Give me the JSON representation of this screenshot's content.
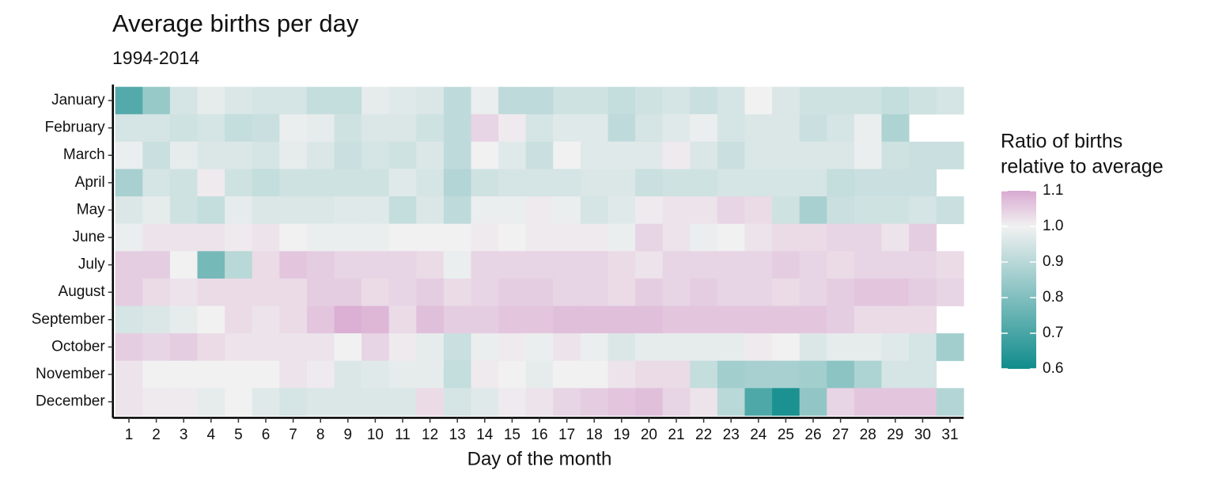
{
  "chart_data": {
    "type": "heatmap",
    "title": "Average births per day",
    "subtitle": "1994-2014",
    "x_label": "Day of the month",
    "categories": [
      "1",
      "2",
      "3",
      "4",
      "5",
      "6",
      "7",
      "8",
      "9",
      "10",
      "11",
      "12",
      "13",
      "14",
      "15",
      "16",
      "17",
      "18",
      "19",
      "20",
      "21",
      "22",
      "23",
      "24",
      "25",
      "26",
      "27",
      "28",
      "29",
      "30",
      "31"
    ],
    "rows": [
      "January",
      "February",
      "March",
      "April",
      "May",
      "June",
      "July",
      "August",
      "September",
      "October",
      "November",
      "December"
    ],
    "values": [
      [
        0.72,
        0.84,
        0.95,
        0.98,
        0.96,
        0.95,
        0.95,
        0.92,
        0.92,
        0.98,
        0.97,
        0.96,
        0.91,
        0.99,
        0.91,
        0.91,
        0.94,
        0.94,
        0.92,
        0.94,
        0.95,
        0.93,
        0.95,
        1.0,
        0.96,
        0.94,
        0.94,
        0.94,
        0.92,
        0.94,
        0.95
      ],
      [
        0.95,
        0.95,
        0.94,
        0.95,
        0.92,
        0.93,
        0.99,
        0.98,
        0.94,
        0.96,
        0.96,
        0.94,
        0.91,
        1.04,
        1.01,
        0.95,
        0.97,
        0.97,
        0.91,
        0.95,
        0.97,
        0.99,
        0.95,
        0.96,
        0.96,
        0.93,
        0.95,
        0.99,
        0.88,
        null,
        null
      ],
      [
        0.99,
        0.93,
        0.98,
        0.96,
        0.96,
        0.95,
        0.98,
        0.96,
        0.93,
        0.95,
        0.94,
        0.96,
        0.91,
        1.0,
        0.97,
        0.93,
        1.0,
        0.97,
        0.97,
        0.97,
        1.01,
        0.96,
        0.93,
        0.96,
        0.96,
        0.96,
        0.96,
        0.99,
        0.94,
        0.93,
        0.93
      ],
      [
        0.87,
        0.95,
        0.94,
        1.01,
        0.94,
        0.92,
        0.94,
        0.94,
        0.94,
        0.94,
        0.97,
        0.95,
        0.89,
        0.94,
        0.95,
        0.95,
        0.95,
        0.96,
        0.96,
        0.93,
        0.94,
        0.94,
        0.95,
        0.95,
        0.95,
        0.95,
        0.92,
        0.93,
        0.93,
        0.93,
        null
      ],
      [
        0.96,
        0.98,
        0.94,
        0.92,
        0.98,
        0.96,
        0.96,
        0.96,
        0.97,
        0.97,
        0.92,
        0.96,
        0.91,
        0.99,
        0.99,
        1.01,
        0.99,
        0.95,
        0.97,
        1.01,
        1.02,
        1.02,
        1.04,
        1.03,
        0.94,
        0.87,
        0.93,
        0.94,
        0.94,
        0.95,
        0.93
      ],
      [
        0.99,
        1.02,
        1.02,
        1.02,
        1.01,
        1.02,
        1.0,
        0.99,
        0.99,
        0.99,
        1.0,
        1.0,
        1.0,
        1.01,
        1.0,
        1.01,
        1.01,
        1.01,
        0.99,
        1.04,
        1.02,
        0.99,
        1.0,
        1.02,
        1.03,
        1.03,
        1.04,
        1.04,
        1.02,
        1.05,
        null
      ],
      [
        1.05,
        1.05,
        1.0,
        0.78,
        0.9,
        1.03,
        1.06,
        1.05,
        1.04,
        1.04,
        1.04,
        1.03,
        0.99,
        1.04,
        1.04,
        1.04,
        1.04,
        1.04,
        1.03,
        1.02,
        1.04,
        1.04,
        1.04,
        1.04,
        1.05,
        1.04,
        1.03,
        1.04,
        1.04,
        1.04,
        1.03
      ],
      [
        1.05,
        1.03,
        1.02,
        1.03,
        1.03,
        1.03,
        1.03,
        1.05,
        1.05,
        1.03,
        1.04,
        1.05,
        1.03,
        1.04,
        1.05,
        1.05,
        1.04,
        1.04,
        1.03,
        1.05,
        1.04,
        1.05,
        1.04,
        1.04,
        1.03,
        1.04,
        1.05,
        1.06,
        1.06,
        1.05,
        1.04
      ],
      [
        0.95,
        0.96,
        0.98,
        1.0,
        1.03,
        1.02,
        1.03,
        1.06,
        1.09,
        1.08,
        1.03,
        1.07,
        1.05,
        1.05,
        1.06,
        1.06,
        1.07,
        1.07,
        1.07,
        1.07,
        1.06,
        1.06,
        1.06,
        1.06,
        1.06,
        1.06,
        1.05,
        1.03,
        1.03,
        1.03,
        null
      ],
      [
        1.05,
        1.04,
        1.05,
        1.03,
        1.02,
        1.02,
        1.02,
        1.02,
        1.0,
        1.04,
        1.01,
        0.98,
        0.93,
        0.99,
        1.01,
        0.99,
        1.02,
        0.99,
        0.96,
        0.98,
        0.98,
        0.98,
        0.98,
        1.01,
        1.0,
        0.96,
        0.98,
        0.98,
        0.97,
        0.95,
        0.86
      ],
      [
        1.02,
        1.0,
        1.0,
        1.0,
        1.0,
        1.0,
        1.02,
        1.01,
        0.96,
        0.97,
        0.98,
        0.98,
        0.92,
        1.01,
        1.0,
        0.98,
        1.0,
        1.0,
        1.02,
        1.03,
        1.03,
        0.92,
        0.86,
        0.87,
        0.87,
        0.86,
        0.82,
        0.88,
        0.95,
        0.95,
        null
      ],
      [
        1.02,
        1.01,
        1.01,
        0.98,
        1.0,
        0.97,
        0.95,
        0.96,
        0.96,
        0.96,
        0.96,
        1.03,
        0.95,
        0.97,
        1.01,
        1.02,
        1.04,
        1.05,
        1.06,
        1.07,
        1.04,
        1.02,
        0.9,
        0.71,
        0.62,
        0.83,
        1.04,
        1.06,
        1.06,
        1.06,
        0.89
      ]
    ],
    "legend_title": [
      "Ratio of births",
      "relative to average"
    ],
    "clim": [
      0.6,
      1.1
    ],
    "midpoint": 1,
    "cticks": [
      1.1,
      {
        "value": 1,
        "label": "1.0"
      },
      0.9,
      0.8,
      0.7,
      0.6
    ],
    "colors": {
      "low": "#118c8c",
      "mid": "#f1f1f1",
      "high": "#d9a9d1"
    }
  }
}
